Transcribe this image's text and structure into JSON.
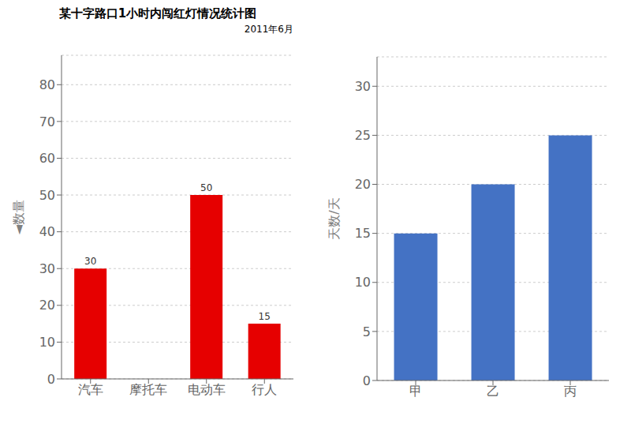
{
  "chart_data": [
    {
      "type": "bar",
      "title": "某十字路口1小时内闯红灯情况统计图",
      "subtitle": "2011年6月",
      "ylabel": "◄数量",
      "categories": [
        "汽车",
        "摩托车",
        "电动车",
        "行人"
      ],
      "values": [
        30,
        0,
        50,
        15
      ],
      "color": "#e60000",
      "ylim": [
        0,
        88
      ],
      "yticks": [
        0,
        10,
        20,
        30,
        40,
        50,
        60,
        70,
        80
      ],
      "grid": true,
      "data_labels": true,
      "value_labels": [
        "30",
        null,
        "50",
        "15"
      ]
    },
    {
      "type": "bar",
      "ylabel": "天数/天",
      "categories": [
        "甲",
        "乙",
        "丙"
      ],
      "values": [
        15,
        20,
        25
      ],
      "color": "#4472c4",
      "ylim": [
        0,
        33
      ],
      "yticks": [
        0,
        5,
        10,
        15,
        20,
        25,
        30
      ],
      "grid": true
    }
  ]
}
